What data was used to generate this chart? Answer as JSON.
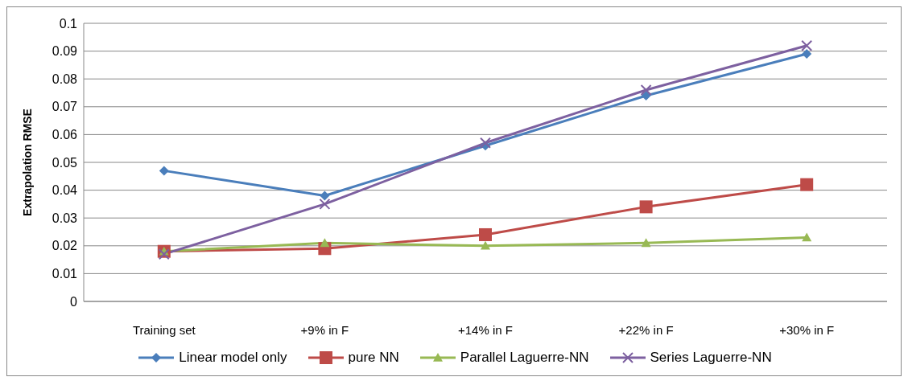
{
  "chart_data": {
    "type": "line",
    "ylabel": "Extrapolation RMSE",
    "categories": [
      "Training set",
      "+9% in F",
      "+14% in F",
      "+22% in F",
      "+30% in F"
    ],
    "series": [
      {
        "name": "Linear model only",
        "color": "#4a7ebb",
        "marker": "diamond",
        "values": [
          0.047,
          0.038,
          0.056,
          0.074,
          0.089
        ]
      },
      {
        "name": "pure NN",
        "color": "#be4b48",
        "marker": "square",
        "values": [
          0.018,
          0.019,
          0.024,
          0.034,
          0.042
        ]
      },
      {
        "name": "Parallel Laguerre-NN",
        "color": "#98b954",
        "marker": "triangle",
        "values": [
          0.018,
          0.021,
          0.02,
          0.021,
          0.023
        ]
      },
      {
        "name": "Series Laguerre-NN",
        "color": "#7d60a0",
        "marker": "cross",
        "values": [
          0.017,
          0.035,
          0.057,
          0.076,
          0.092
        ]
      }
    ],
    "ylim": [
      0,
      0.1
    ],
    "yticks": [
      0,
      0.01,
      0.02,
      0.03,
      0.04,
      0.05,
      0.06,
      0.07,
      0.08,
      0.09,
      0.1
    ],
    "grid": "y",
    "legend": "bottom",
    "line_style": "solid"
  }
}
